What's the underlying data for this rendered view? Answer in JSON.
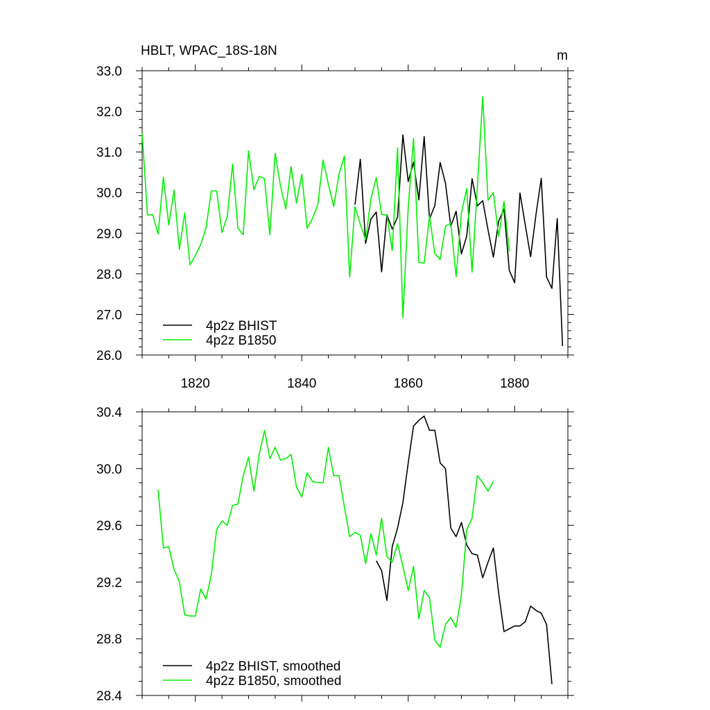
{
  "chart_data": [
    {
      "type": "line",
      "title": "HBLT, WPAC_18S-18N",
      "units": "m",
      "xlim": [
        1810,
        1890
      ],
      "ylim": [
        26.0,
        33.0
      ],
      "x_tick_labels": [
        "1820",
        "1840",
        "1860",
        "1880"
      ],
      "y_tick_labels": [
        "26.0",
        "27.0",
        "28.0",
        "29.0",
        "30.0",
        "31.0",
        "32.0",
        "33.0"
      ],
      "legend_position": "bottom-left",
      "series": [
        {
          "name": "4p2z BHIST",
          "color": "#000000",
          "x": [
            1850,
            1851,
            1852,
            1853,
            1854,
            1855,
            1856,
            1857,
            1858,
            1859,
            1860,
            1861,
            1862,
            1863,
            1864,
            1865,
            1866,
            1867,
            1868,
            1869,
            1870,
            1871,
            1872,
            1873,
            1874,
            1875,
            1876,
            1877,
            1878,
            1879,
            1880,
            1881,
            1882,
            1883,
            1884,
            1885,
            1886,
            1887,
            1888,
            1889
          ],
          "y": [
            29.7,
            30.82,
            28.75,
            29.35,
            29.52,
            28.05,
            29.45,
            29.1,
            29.4,
            31.42,
            30.27,
            30.75,
            29.82,
            31.38,
            29.35,
            29.68,
            30.74,
            30.23,
            29.17,
            29.54,
            28.49,
            28.93,
            30.34,
            29.67,
            29.8,
            29.08,
            28.41,
            29.3,
            29.59,
            28.08,
            27.78,
            29.99,
            29.2,
            28.42,
            29.45,
            30.35,
            27.92,
            27.64,
            29.36,
            26.22
          ]
        },
        {
          "name": "4p2z B1850",
          "color": "#00ee00",
          "x": [
            1810,
            1811,
            1812,
            1813,
            1814,
            1815,
            1816,
            1817,
            1818,
            1819,
            1820,
            1821,
            1822,
            1823,
            1824,
            1825,
            1826,
            1827,
            1828,
            1829,
            1830,
            1831,
            1832,
            1833,
            1834,
            1835,
            1836,
            1837,
            1838,
            1839,
            1840,
            1841,
            1842,
            1843,
            1844,
            1845,
            1846,
            1847,
            1848,
            1849,
            1850,
            1851,
            1852,
            1853,
            1854,
            1855,
            1856,
            1857,
            1858,
            1859,
            1860,
            1861,
            1862,
            1863,
            1864,
            1865,
            1866,
            1867,
            1868,
            1869,
            1870,
            1871,
            1872,
            1873,
            1874,
            1875,
            1876,
            1877,
            1878,
            1879
          ],
          "y": [
            31.47,
            29.45,
            29.45,
            28.98,
            30.38,
            29.2,
            30.06,
            28.6,
            29.5,
            28.22,
            28.45,
            28.72,
            29.12,
            30.04,
            30.04,
            29.02,
            29.41,
            30.7,
            29.12,
            28.96,
            31.03,
            30.07,
            30.4,
            30.34,
            28.96,
            30.97,
            30.16,
            29.6,
            30.64,
            29.74,
            30.45,
            29.12,
            29.36,
            29.7,
            30.8,
            30.2,
            29.66,
            30.45,
            30.9,
            27.92,
            29.65,
            29.22,
            28.84,
            29.85,
            30.37,
            29.46,
            29.44,
            28.57,
            31.1,
            26.92,
            29.63,
            31.33,
            28.28,
            28.26,
            29.42,
            28.5,
            28.35,
            29.17,
            29.25,
            27.93,
            29.5,
            30.1,
            28.04,
            30.15,
            32.36,
            29.81,
            30.0,
            28.92,
            29.78,
            28.55
          ]
        }
      ]
    },
    {
      "type": "line",
      "title": "",
      "xlim": [
        1810,
        1890
      ],
      "ylim": [
        28.4,
        30.4
      ],
      "x_tick_labels": [],
      "y_tick_labels": [
        "28.4",
        "28.8",
        "29.2",
        "29.6",
        "30.0",
        "30.4"
      ],
      "legend_position": "bottom-left",
      "series": [
        {
          "name": "4p2z BHIST, smoothed",
          "color": "#000000",
          "x": [
            1854,
            1855,
            1856,
            1857,
            1858,
            1859,
            1860,
            1861,
            1862,
            1863,
            1864,
            1865,
            1866,
            1867,
            1868,
            1869,
            1870,
            1871,
            1872,
            1873,
            1874,
            1875,
            1876,
            1877,
            1878,
            1879,
            1880,
            1881,
            1882,
            1883,
            1884,
            1885,
            1886,
            1887
          ],
          "y": [
            29.35,
            29.28,
            29.07,
            29.45,
            29.58,
            29.76,
            30.04,
            30.3,
            30.34,
            30.37,
            30.27,
            30.27,
            30.04,
            30.0,
            29.58,
            29.52,
            29.62,
            29.46,
            29.4,
            29.39,
            29.23,
            29.34,
            29.44,
            29.12,
            28.85,
            28.87,
            28.89,
            28.89,
            28.92,
            29.03,
            29.0,
            28.98,
            28.9,
            28.48
          ]
        },
        {
          "name": "4p2z B1850, smoothed",
          "color": "#00ee00",
          "x": [
            1813,
            1814,
            1815,
            1816,
            1817,
            1818,
            1819,
            1820,
            1821,
            1822,
            1823,
            1824,
            1825,
            1826,
            1827,
            1828,
            1829,
            1830,
            1831,
            1832,
            1833,
            1834,
            1835,
            1836,
            1837,
            1838,
            1839,
            1840,
            1841,
            1842,
            1843,
            1844,
            1845,
            1846,
            1847,
            1848,
            1849,
            1850,
            1851,
            1852,
            1853,
            1854,
            1855,
            1856,
            1857,
            1858,
            1859,
            1860,
            1861,
            1862,
            1863,
            1864,
            1865,
            1866,
            1867,
            1868,
            1869,
            1870,
            1871,
            1872,
            1873,
            1874,
            1875,
            1876
          ],
          "y": [
            29.85,
            29.44,
            29.45,
            29.29,
            29.2,
            28.97,
            28.96,
            28.96,
            29.15,
            29.08,
            29.25,
            29.57,
            29.63,
            29.6,
            29.74,
            29.75,
            29.95,
            30.08,
            29.84,
            30.1,
            30.27,
            30.07,
            30.15,
            30.06,
            30.07,
            30.1,
            29.87,
            29.8,
            29.97,
            29.91,
            29.9,
            29.9,
            30.15,
            29.95,
            29.95,
            29.73,
            29.52,
            29.55,
            29.53,
            29.33,
            29.54,
            29.39,
            29.65,
            29.38,
            29.34,
            29.47,
            29.31,
            29.14,
            29.31,
            28.94,
            29.14,
            29.09,
            28.79,
            28.74,
            28.9,
            28.95,
            28.88,
            29.11,
            29.57,
            29.65,
            29.95,
            29.9,
            29.84,
            29.91
          ]
        }
      ]
    }
  ]
}
